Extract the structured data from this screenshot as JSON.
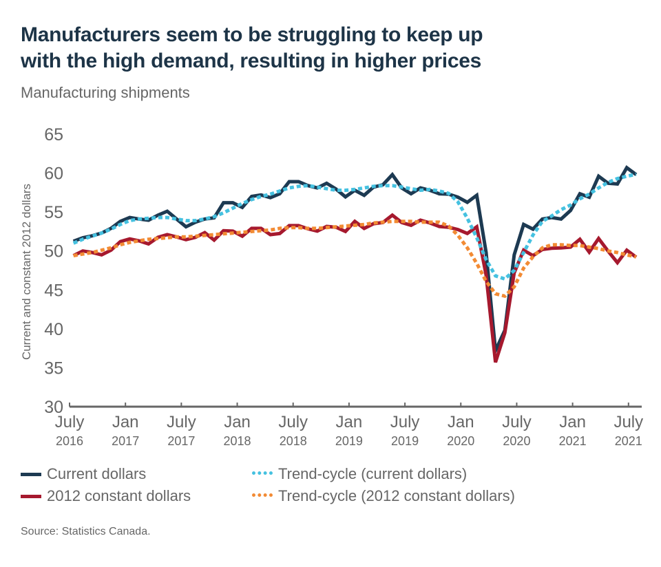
{
  "title_line1": "Manufacturers seem to be struggling to keep up",
  "title_line2": "with the high demand, resulting in higher prices",
  "subtitle": "Manufacturing shipments",
  "source": "Source: Statistics Canada.",
  "colors": {
    "current": "#1d3a52",
    "constant": "#a6192e",
    "trend_current": "#45c1e0",
    "trend_constant": "#f28b34",
    "axis": "#666666",
    "text": "#666666"
  },
  "legend": [
    {
      "label": "Current dollars",
      "style": "solid",
      "color": "#1d3a52"
    },
    {
      "label": "Trend-cycle (current dollars)",
      "style": "dotted",
      "color": "#45c1e0"
    },
    {
      "label": "2012 constant dollars",
      "style": "solid",
      "color": "#a6192e"
    },
    {
      "label": "Trend-cycle (2012 constant dollars)",
      "style": "dotted",
      "color": "#f28b34"
    }
  ],
  "chart_data": {
    "type": "line",
    "title": "Manufacturers seem to be struggling to keep up with the high demand, resulting in higher prices",
    "subtitle": "Manufacturing shipments",
    "xlabel": "",
    "ylabel": "Current and constant 2012 dollars",
    "ylim": [
      30,
      65
    ],
    "yticks": [
      30,
      35,
      40,
      45,
      50,
      55,
      60,
      65
    ],
    "grid": false,
    "legend_position": "bottom",
    "x_start": "2016-07",
    "x_frequency": "monthly",
    "x_count": 61,
    "xticks": [
      {
        "month_index": 0,
        "line1": "July",
        "line2": "2016"
      },
      {
        "month_index": 6,
        "line1": "Jan",
        "line2": "2017"
      },
      {
        "month_index": 12,
        "line1": "July",
        "line2": "2017"
      },
      {
        "month_index": 18,
        "line1": "Jan",
        "line2": "2018"
      },
      {
        "month_index": 24,
        "line1": "July",
        "line2": "2018"
      },
      {
        "month_index": 30,
        "line1": "Jan",
        "line2": "2019"
      },
      {
        "month_index": 36,
        "line1": "July",
        "line2": "2019"
      },
      {
        "month_index": 42,
        "line1": "Jan",
        "line2": "2020"
      },
      {
        "month_index": 48,
        "line1": "July",
        "line2": "2020"
      },
      {
        "month_index": 54,
        "line1": "Jan",
        "line2": "2021"
      },
      {
        "month_index": 60,
        "line1": "July",
        "line2": "2021"
      }
    ],
    "series": [
      {
        "name": "Current dollars",
        "style": "solid",
        "values": [
          51.25,
          51.7,
          51.95,
          52.3,
          52.9,
          53.8,
          54.3,
          54.1,
          53.95,
          54.6,
          55.1,
          54.1,
          53.1,
          53.7,
          54.1,
          54.25,
          56.2,
          56.2,
          55.6,
          57.0,
          57.2,
          56.85,
          57.35,
          58.9,
          58.9,
          58.4,
          58.1,
          58.7,
          57.95,
          56.95,
          57.8,
          57.15,
          58.2,
          58.5,
          59.8,
          58.1,
          57.35,
          58.1,
          57.8,
          57.35,
          57.3,
          56.9,
          56.25,
          57.15,
          49.8,
          37.2,
          39.8,
          49.5,
          53.4,
          52.8,
          54.1,
          54.3,
          54.1,
          55.2,
          57.35,
          56.9,
          59.6,
          58.7,
          58.6,
          60.7,
          59.8
        ]
      },
      {
        "name": "2012 constant dollars",
        "style": "solid",
        "values": [
          49.4,
          50.0,
          49.8,
          49.5,
          50.1,
          51.2,
          51.55,
          51.3,
          50.9,
          51.75,
          52.1,
          51.8,
          51.45,
          51.75,
          52.35,
          51.4,
          52.6,
          52.55,
          51.9,
          52.9,
          52.9,
          52.1,
          52.25,
          53.25,
          53.25,
          52.85,
          52.55,
          53.15,
          53.05,
          52.5,
          53.8,
          52.9,
          53.5,
          53.65,
          54.6,
          53.65,
          53.3,
          53.95,
          53.6,
          53.15,
          53.05,
          52.75,
          52.25,
          53.1,
          46.9,
          35.7,
          39.5,
          47.2,
          50.1,
          49.4,
          50.2,
          50.35,
          50.4,
          50.5,
          51.5,
          49.85,
          51.6,
          50.0,
          48.5,
          50.1,
          49.2
        ]
      },
      {
        "name": "Trend-cycle (current dollars)",
        "style": "dotted",
        "values": [
          51.0,
          51.5,
          51.9,
          52.3,
          52.8,
          53.4,
          53.9,
          54.1,
          54.2,
          54.3,
          54.3,
          54.1,
          53.9,
          53.9,
          54.1,
          54.4,
          54.9,
          55.5,
          56.1,
          56.6,
          57.0,
          57.3,
          57.7,
          58.1,
          58.3,
          58.4,
          58.2,
          58.0,
          57.8,
          57.8,
          57.9,
          58.1,
          58.3,
          58.4,
          58.4,
          58.2,
          58.0,
          57.8,
          57.9,
          57.7,
          57.4,
          56.3,
          54.2,
          51.7,
          48.9,
          46.8,
          46.4,
          47.5,
          49.8,
          52.05,
          53.8,
          54.5,
          55.3,
          55.9,
          56.7,
          57.3,
          58.1,
          58.8,
          59.3,
          59.6,
          59.85
        ]
      },
      {
        "name": "Trend-cycle (2012 constant dollars)",
        "style": "dotted",
        "values": [
          49.4,
          49.6,
          49.8,
          50.1,
          50.4,
          50.8,
          51.1,
          51.3,
          51.5,
          51.6,
          51.7,
          51.8,
          51.8,
          51.9,
          52.0,
          52.1,
          52.2,
          52.3,
          52.4,
          52.5,
          52.6,
          52.7,
          52.9,
          53.0,
          53.0,
          52.9,
          52.9,
          53.0,
          53.1,
          53.2,
          53.3,
          53.4,
          53.6,
          53.7,
          53.8,
          53.8,
          53.8,
          53.7,
          53.7,
          53.7,
          53.2,
          52.0,
          50.4,
          48.4,
          46.1,
          44.5,
          44.2,
          45.4,
          47.8,
          49.25,
          50.4,
          50.8,
          50.8,
          50.7,
          50.7,
          50.5,
          50.3,
          50.0,
          49.8,
          49.5,
          49.25
        ]
      }
    ]
  }
}
